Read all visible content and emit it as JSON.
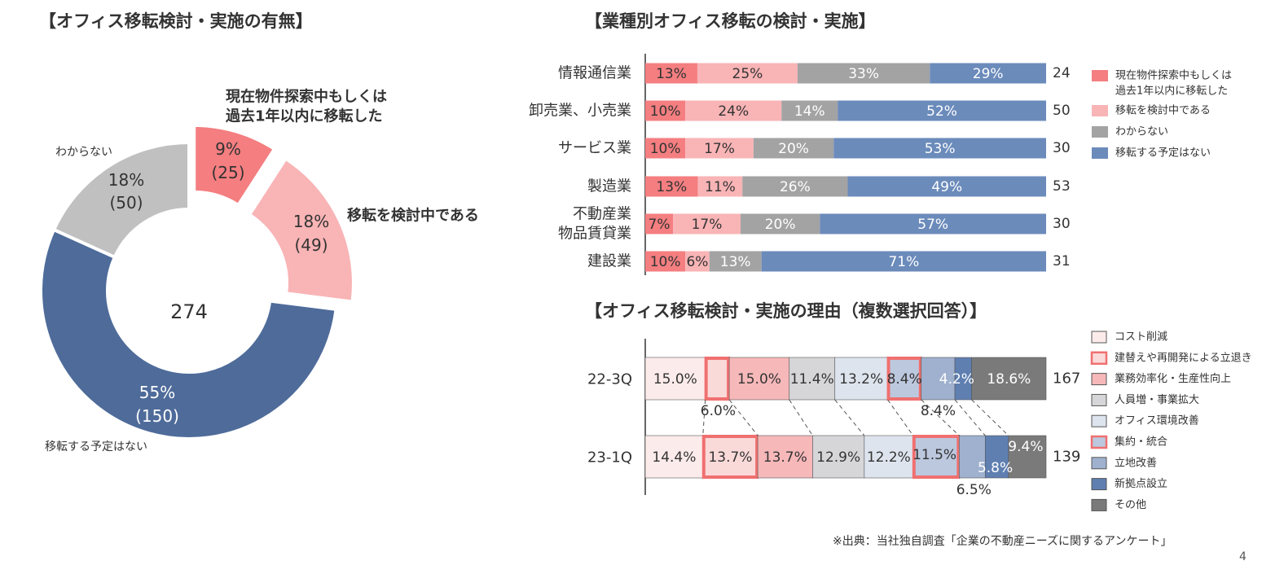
{
  "titles": {
    "donut": "【オフィス移転検討・実施の有無】",
    "industry": "【業種別オフィス移転の検討・実施】",
    "reasons": "【オフィス移転検討・実施の理由（複数選択回答）】"
  },
  "source": "※出典：当社独自調査「企業の不動産ニーズに関するアンケート」",
  "page_number": "4",
  "colors": {
    "moved": "#F47E80",
    "considering": "#F9B4B6",
    "unknown": "#A3A3A3",
    "no_plan": "#4E6B9A",
    "no_plan_bar": "#6B8BBB",
    "donut_unknown": "#C0C0C0"
  },
  "chart_data": [
    {
      "type": "pie",
      "title": "【オフィス移転検討・実施の有無】",
      "total": "274",
      "slices": [
        {
          "label_lines": [
            "現在物件探索中もしくは",
            "過去1年以内に移転した"
          ],
          "percent_text": "9%",
          "count_text": "(25)",
          "value": 25,
          "color": "#F47E80",
          "exploded": true
        },
        {
          "label_lines": [
            "移転を検討中である"
          ],
          "percent_text": "18%",
          "count_text": "(49)",
          "value": 49,
          "color": "#F9B4B6",
          "exploded": true
        },
        {
          "label_lines": [
            "移転する予定はない"
          ],
          "percent_text": "55%",
          "count_text": "(150)",
          "value": 150,
          "color": "#4E6B9A",
          "exploded": false
        },
        {
          "label_lines": [
            "わからない"
          ],
          "percent_text": "18%",
          "count_text": "(50)",
          "value": 50,
          "color": "#C0C0C0",
          "exploded": false
        }
      ]
    },
    {
      "type": "bar",
      "orientation": "horizontal-stacked-100",
      "title": "【業種別オフィス移転の検討・実施】",
      "series": [
        {
          "name": "現在物件探索中もしくは\n過去1年以内に移転した",
          "legend_lines": [
            "現在物件探索中もしくは",
            "過去1年以内に移転した"
          ],
          "color": "#F47E80"
        },
        {
          "name": "移転を検討中である",
          "legend_lines": [
            "移転を検討中である"
          ],
          "color": "#F9B4B6"
        },
        {
          "name": "わからない",
          "legend_lines": [
            "わからない"
          ],
          "color": "#A3A3A3"
        },
        {
          "name": "移転する予定はない",
          "legend_lines": [
            "移転する予定はない"
          ],
          "color": "#6B8BBB"
        }
      ],
      "categories": [
        {
          "label_lines": [
            "情報通信業"
          ],
          "values": [
            13,
            25,
            33,
            29
          ],
          "n": "24"
        },
        {
          "label_lines": [
            "卸売業、小売業"
          ],
          "values": [
            10,
            24,
            14,
            52
          ],
          "n": "50"
        },
        {
          "label_lines": [
            "サービス業"
          ],
          "values": [
            10,
            17,
            20,
            53
          ],
          "n": "30"
        },
        {
          "label_lines": [
            "製造業"
          ],
          "values": [
            13,
            11,
            26,
            49
          ],
          "n": "53"
        },
        {
          "label_lines": [
            "不動産業",
            "物品賃貸業"
          ],
          "values": [
            7,
            17,
            20,
            57
          ],
          "n": "30"
        },
        {
          "label_lines": [
            "建設業"
          ],
          "values": [
            10,
            6,
            13,
            71
          ],
          "n": "31"
        }
      ]
    },
    {
      "type": "bar",
      "orientation": "horizontal-stacked-100",
      "title": "【オフィス移転検討・実施の理由（複数選択回答）】",
      "series": [
        {
          "name": "コスト削減",
          "color": "#FCEBEB",
          "highlight": false
        },
        {
          "name": "建替えや再開発による立退き",
          "color": "#FAD9D9",
          "highlight": true
        },
        {
          "name": "業務効率化・生産性向上",
          "color": "#F6B8B9",
          "highlight": false
        },
        {
          "name": "人員増・事業拡大",
          "color": "#D6D6D9",
          "highlight": false
        },
        {
          "name": "オフィス環境改善",
          "color": "#DEE4EE",
          "highlight": false
        },
        {
          "name": "集約・統合",
          "color": "#BCC8DE",
          "highlight": true
        },
        {
          "name": "立地改善",
          "color": "#9FB1CF",
          "highlight": false
        },
        {
          "name": "新拠点設立",
          "color": "#5F7FB1",
          "highlight": false
        },
        {
          "name": "その他",
          "color": "#7A7A7A",
          "highlight": false
        }
      ],
      "rows": [
        {
          "label": "22-3Q",
          "n": "167",
          "values": [
            15.0,
            6.0,
            15.0,
            11.4,
            13.2,
            8.4,
            8.4,
            4.2,
            18.6
          ],
          "labels": [
            "15.0%",
            "6.0%",
            "15.0%",
            "11.4%",
            "13.2%",
            "8.4%",
            "8.4%",
            "4.2%",
            "18.6%"
          ]
        },
        {
          "label": "23-1Q",
          "n": "139",
          "values": [
            14.4,
            13.7,
            13.7,
            12.9,
            12.2,
            11.5,
            6.5,
            5.8,
            9.4
          ],
          "labels": [
            "14.4%",
            "13.7%",
            "13.7%",
            "12.9%",
            "12.2%",
            "11.5%",
            "6.5%",
            "5.8%",
            "9.4%"
          ]
        }
      ]
    }
  ]
}
